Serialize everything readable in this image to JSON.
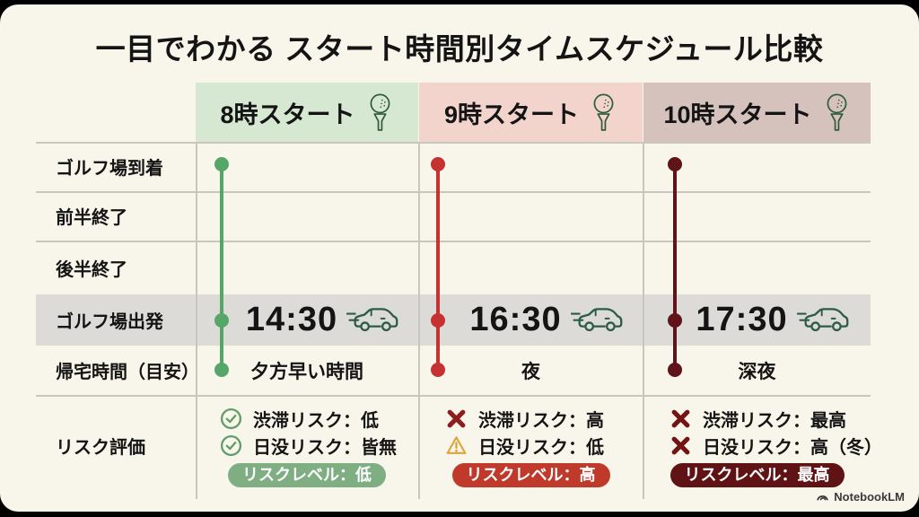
{
  "title": "一目でわかる スタート時間別タイムスケジュール比較",
  "table": {
    "row_labels": [
      "ゴルフ場到着",
      "前半終了",
      "後半終了",
      "ゴルフ場出発",
      "帰宅時間（目安）",
      "リスク評価"
    ],
    "columns": [
      {
        "header": "8時スタート",
        "header_bg": "#d6e8d1",
        "timeline_color": "#55a667",
        "departure_time": "14:30",
        "return_time": "夕方早い時間",
        "risks": [
          {
            "icon": "check",
            "icon_color": "#5f9e68",
            "text": "渋滞リスク：低"
          },
          {
            "icon": "check",
            "icon_color": "#5f9e68",
            "text": "日没リスク：皆無"
          }
        ],
        "badge": {
          "text": "リスクレベル：低",
          "bg": "#7fae83"
        }
      },
      {
        "header": "9時スタート",
        "header_bg": "#f2d4cc",
        "timeline_color": "#c63232",
        "departure_time": "16:30",
        "return_time": "夜",
        "risks": [
          {
            "icon": "cross",
            "icon_color": "#8e1e1e",
            "text": "渋滞リスク：高"
          },
          {
            "icon": "warning",
            "icon_color": "#dca53a",
            "text": "日没リスク：低"
          }
        ],
        "badge": {
          "text": "リスクレベル：高",
          "bg": "#c03a2b"
        }
      },
      {
        "header": "10時スタート",
        "header_bg": "#d6c2bd",
        "timeline_color": "#601318",
        "departure_time": "17:30",
        "return_time": "深夜",
        "risks": [
          {
            "icon": "cross",
            "icon_color": "#731313",
            "text": "渋滞リスク：最高"
          },
          {
            "icon": "cross",
            "icon_color": "#731313",
            "text": "日没リスク：高（冬）"
          }
        ],
        "badge": {
          "text": "リスクレベル：最高",
          "bg": "#601315"
        }
      }
    ]
  },
  "footer": {
    "brand": "NotebookLM"
  },
  "colors": {
    "slide_bg": "#f8f5ea",
    "grid_line": "#c9c6bd",
    "highlight_row": "#dcdbd7",
    "icon_green": "#2e5b3a",
    "car_green": "#2c5b46"
  }
}
